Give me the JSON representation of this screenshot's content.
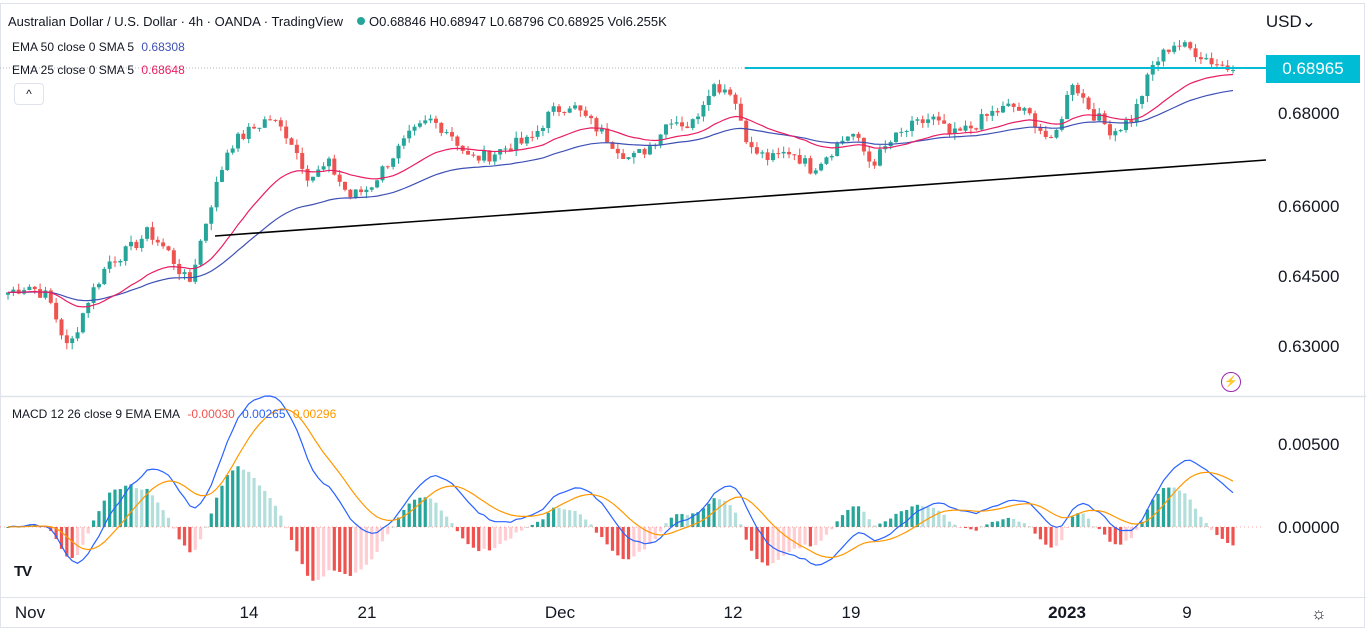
{
  "header": {
    "symbol_title": "Australian Dollar / U.S. Dollar · 4h · OANDA · TradingView",
    "ohlc_label": "O0.68846 H0.68947 L0.68796 C0.68925 Vol6.255K",
    "currency_label": "USD",
    "price_tag": "0.68965"
  },
  "indicators": {
    "ema50": {
      "label": "EMA 50 close 0 SMA 5",
      "value": "0.68308",
      "color": "#3f51b5"
    },
    "ema25": {
      "label": "EMA 25 close 0 SMA 5",
      "value": "0.68648",
      "color": "#e91e63"
    },
    "macd": {
      "label": "MACD 12 26 close 9 EMA EMA",
      "hist_value": "-0.00030",
      "macd_value": "0.00265",
      "signal_value": "0.00296"
    }
  },
  "colors": {
    "up": "#26a69a",
    "down": "#ef5350",
    "macd_line": "#2962ff",
    "signal_line": "#ff9800",
    "resistance": "#00bcd4",
    "trendline": "#000000"
  },
  "chart_data": {
    "type": "candlestick",
    "instrument": "AUD/USD",
    "timeframe": "4h",
    "x_ticks": [
      "Nov",
      "14",
      "21",
      "Dec",
      "12",
      "19",
      "2023",
      "9"
    ],
    "y_ticks": [
      "0.68000",
      "0.66000",
      "0.64500",
      "0.63000"
    ],
    "ylim": [
      0.6245,
      0.6975
    ],
    "resistance_level": 0.68965,
    "close_path": [
      {
        "x": "Nov 10",
        "close": 0.6415
      },
      {
        "x": "Nov 11",
        "close": 0.643
      },
      {
        "x": "Nov 12",
        "close": 0.6405
      },
      {
        "x": "Nov 13",
        "close": 0.629
      },
      {
        "x": "Nov 14",
        "close": 0.64
      },
      {
        "x": "Nov 15",
        "close": 0.648
      },
      {
        "x": "Nov 16",
        "close": 0.6505
      },
      {
        "x": "Nov 17",
        "close": 0.6545
      },
      {
        "x": "Nov 18",
        "close": 0.65
      },
      {
        "x": "Nov 19",
        "close": 0.643
      },
      {
        "x": "Nov 20",
        "close": 0.659
      },
      {
        "x": "Nov 21",
        "close": 0.673
      },
      {
        "x": "Nov 22",
        "close": 0.676
      },
      {
        "x": "Nov 23",
        "close": 0.679
      },
      {
        "x": "Nov 24",
        "close": 0.675
      },
      {
        "x": "Nov 25",
        "close": 0.666
      },
      {
        "x": "Nov 26",
        "close": 0.669
      },
      {
        "x": "Nov 27",
        "close": 0.662
      },
      {
        "x": "Nov 28",
        "close": 0.664
      },
      {
        "x": "Nov 29",
        "close": 0.67
      },
      {
        "x": "Nov 30",
        "close": 0.675
      },
      {
        "x": "Dec 1",
        "close": 0.6785
      },
      {
        "x": "Dec 2",
        "close": 0.676
      },
      {
        "x": "Dec 3",
        "close": 0.67
      },
      {
        "x": "Dec 4",
        "close": 0.671
      },
      {
        "x": "Dec 5",
        "close": 0.673
      },
      {
        "x": "Dec 6",
        "close": 0.674
      },
      {
        "x": "Dec 7",
        "close": 0.68
      },
      {
        "x": "Dec 8",
        "close": 0.682
      },
      {
        "x": "Dec 9",
        "close": 0.678
      },
      {
        "x": "Dec 10",
        "close": 0.674
      },
      {
        "x": "Dec 11",
        "close": 0.67
      },
      {
        "x": "Dec 12",
        "close": 0.673
      },
      {
        "x": "Dec 13",
        "close": 0.679
      },
      {
        "x": "Dec 14",
        "close": 0.677
      },
      {
        "x": "Dec 15",
        "close": 0.686
      },
      {
        "x": "Dec 16",
        "close": 0.685
      },
      {
        "x": "Dec 17",
        "close": 0.672
      },
      {
        "x": "Dec 18",
        "close": 0.67
      },
      {
        "x": "Dec 19",
        "close": 0.672
      },
      {
        "x": "Dec 20",
        "close": 0.668
      },
      {
        "x": "Dec 21",
        "close": 0.672
      },
      {
        "x": "Dec 22",
        "close": 0.676
      },
      {
        "x": "Dec 23",
        "close": 0.669
      },
      {
        "x": "Dec 24",
        "close": 0.674
      },
      {
        "x": "Dec 25",
        "close": 0.677
      },
      {
        "x": "Dec 26",
        "close": 0.679
      },
      {
        "x": "Dec 27",
        "close": 0.675
      },
      {
        "x": "Dec 28",
        "close": 0.677
      },
      {
        "x": "Dec 29",
        "close": 0.68
      },
      {
        "x": "Dec 30",
        "close": 0.6815
      },
      {
        "x": "Jan 2",
        "close": 0.679
      },
      {
        "x": "Jan 3",
        "close": 0.673
      },
      {
        "x": "Jan 4",
        "close": 0.687
      },
      {
        "x": "Jan 5",
        "close": 0.68
      },
      {
        "x": "Jan 6",
        "close": 0.676
      },
      {
        "x": "Jan 7",
        "close": 0.679
      },
      {
        "x": "Jan 8",
        "close": 0.69
      },
      {
        "x": "Jan 9",
        "close": 0.695
      },
      {
        "x": "Jan 10",
        "close": 0.6935
      },
      {
        "x": "Jan 11",
        "close": 0.691
      },
      {
        "x": "Jan 12",
        "close": 0.68925
      }
    ],
    "macd": {
      "y_ticks": [
        "0.00500",
        "0.00000"
      ],
      "ylim": [
        -0.0035,
        0.0072
      ],
      "current": {
        "hist": -0.0003,
        "macd": 0.00265,
        "signal": 0.00296
      }
    }
  }
}
